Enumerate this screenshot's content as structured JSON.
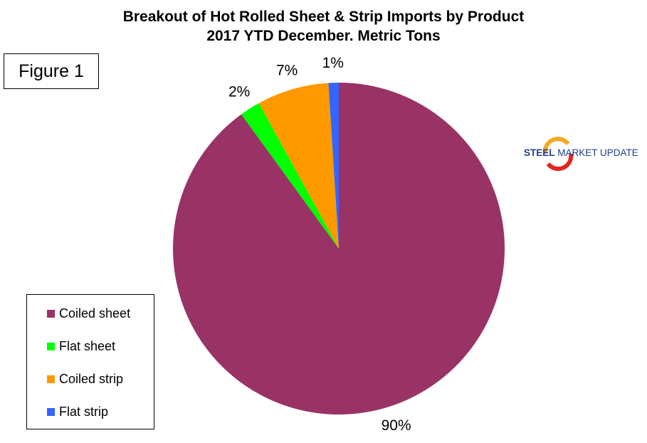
{
  "title_line1": "Breakout of Hot Rolled Sheet & Strip Imports by Product",
  "title_line2": "2017 YTD December. Metric Tons",
  "figure_label": "Figure 1",
  "logo": {
    "bold": "STEEL",
    "rest": " MARKET UPDATE"
  },
  "chart_data": {
    "type": "pie",
    "title": "Breakout of Hot Rolled Sheet & Strip Imports by Product 2017 YTD December. Metric Tons",
    "legend_position": "bottom-left",
    "categories": [
      "Coiled sheet",
      "Flat sheet",
      "Coiled strip",
      "Flat strip"
    ],
    "values": [
      90,
      2,
      7,
      1
    ],
    "data_labels": [
      "90%",
      "2%",
      "7%",
      "1%"
    ],
    "colors": [
      "#993366",
      "#00ff00",
      "#ff9900",
      "#3366ff"
    ]
  }
}
